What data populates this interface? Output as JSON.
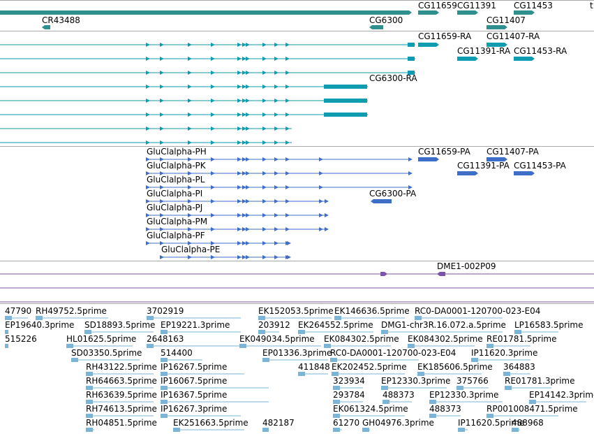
{
  "colors": {
    "gene": "#2f8f8f",
    "transcript_cyan": "#0f9bb0",
    "transcript_blue": "#3d6fc8",
    "dme_purple": "#7b52ad",
    "est_light": "#7ab4d6",
    "divider": "#a8a8a8"
  },
  "gene_track": {
    "labels": [
      "CR43488",
      "CG6300",
      "CG11659",
      "CG11391",
      "CG11453",
      "CG11407",
      "t"
    ]
  },
  "cyan_track": {
    "labels": [
      "CG11659-RA",
      "CG11407-RA",
      "CG11391-RA",
      "CG11453-RA",
      "CG6300-RA"
    ]
  },
  "blue_track": {
    "labels": [
      "GluClalpha-PH",
      "GluClalpha-PK",
      "GluClalpha-PL",
      "GluClalpha-PI",
      "GluClalpha-PJ",
      "GluClalpha-PM",
      "GluClalpha-PF",
      "GluClalpha-PE",
      "CG11659-PA",
      "CG11407-PA",
      "CG11391-PA",
      "CG11453-PA",
      "CG6300-PA"
    ]
  },
  "dme_track": {
    "label": "DME1-002P09"
  },
  "est_track": {
    "labels": [
      "47790",
      "RH49752.5prime",
      "3702919",
      "EK152053.5prime",
      "EK146636.5prime",
      "RC0-DA0001-120700-023-E04",
      "EP19640.3prime",
      "SD18893.5prime",
      "EP19221.3prime",
      "203912",
      "EK264552.5prime",
      "DMG1-chr3R.16.072.a.5prime",
      "LP16583.5prime",
      "515226",
      "HL01625.5prime",
      "2648163",
      "EK049034.5prime",
      "EK084302.5prime",
      "EK084302.5prime",
      "RE01781.5prime",
      "SD03350.5prime",
      "514400",
      "EP01336.3prime",
      "RC0-DA0001-120700-023-E04",
      "IP11620.3prime",
      "RH43122.5prime",
      "IP16267.5prime",
      "411848",
      "EK202452.5prime",
      "EK185606.5prime",
      "364883",
      "RH64663.5prime",
      "IP16067.5prime",
      "323934",
      "EP12330.3prime",
      "375766",
      "RE01781.3prime",
      "RH63639.5prime",
      "IP16367.5prime",
      "293784",
      "488373",
      "EP12330.3prime",
      "EP14142.3prime",
      "RH74613.5prime",
      "IP16267.3prime",
      "EK061324.5prime",
      "488373",
      "RP001008471.5prime",
      "RH04851.5prime",
      "EK251663.5prime",
      "482187",
      "61270",
      "GH04976.3prime",
      "IP11620.5prime",
      "488968"
    ]
  }
}
